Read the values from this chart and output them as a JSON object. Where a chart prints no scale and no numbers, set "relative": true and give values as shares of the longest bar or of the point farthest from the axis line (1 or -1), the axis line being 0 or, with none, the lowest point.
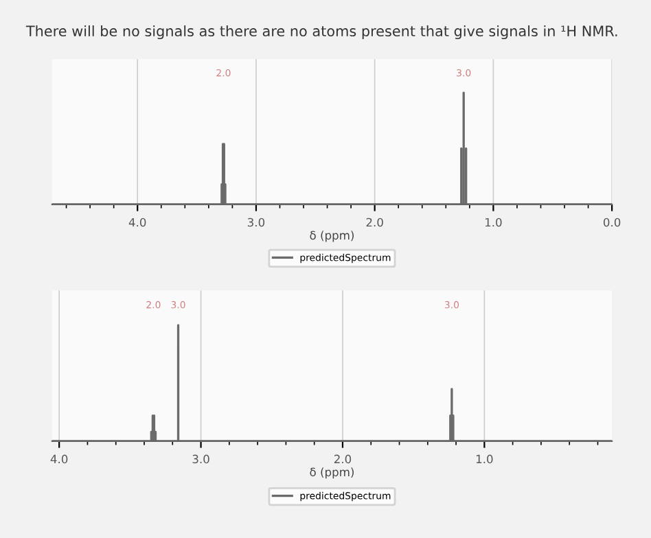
{
  "chart_data": [
    {
      "type": "line",
      "title": "There will be no signals as there are no atoms present that give signals in ¹H NMR.",
      "xlabel": "δ (ppm)",
      "relative": true,
      "xlim": [
        4.72,
        0.0
      ],
      "xticks": [
        {
          "value": 4.0,
          "label": "4.0"
        },
        {
          "value": 3.0,
          "label": "3.0"
        },
        {
          "value": 2.0,
          "label": "2.0"
        },
        {
          "value": 1.0,
          "label": "1.0"
        },
        {
          "value": 0.0,
          "label": "0.0"
        }
      ],
      "grid": "x",
      "legend": "bottom",
      "tick_labels": "x",
      "series": [
        {
          "name": "predictedSpectrum",
          "color": "#6b6b6b",
          "x": [
            4.72,
            3.29,
            3.29,
            3.29,
            3.28,
            3.28,
            3.28,
            3.27,
            3.27,
            3.27,
            3.26,
            3.26,
            3.26,
            1.27,
            1.27,
            1.27,
            1.25,
            1.25,
            1.25,
            1.23,
            1.23,
            1.23,
            0.0
          ],
          "values": [
            0,
            0,
            0.18,
            0,
            0,
            0.54,
            0,
            0,
            0.54,
            0,
            0,
            0.18,
            0,
            0,
            0.5,
            0,
            0,
            1,
            0,
            0,
            0.5,
            0,
            0
          ]
        }
      ],
      "annotations": [
        "2.0",
        "3.0"
      ]
    },
    {
      "type": "line",
      "xlabel": "δ (ppm)",
      "relative": true,
      "xlim": [
        4.05,
        0.1
      ],
      "xticks": [
        {
          "value": 4.0,
          "label": "4.0"
        },
        {
          "value": 3.0,
          "label": "3.0"
        },
        {
          "value": 2.0,
          "label": "2.0"
        },
        {
          "value": 1.0,
          "label": "1.0"
        }
      ],
      "grid": "x",
      "legend": "bottom",
      "tick_labels": "x",
      "series": [
        {
          "name": "predictedSpectrum",
          "color": "#6b6b6b",
          "x": [
            4.05,
            3.35,
            3.35,
            3.35,
            3.34,
            3.34,
            3.34,
            3.33,
            3.33,
            3.33,
            3.32,
            3.32,
            3.32,
            3.16,
            3.16,
            3.16,
            1.24,
            1.24,
            1.24,
            1.23,
            1.23,
            1.23,
            1.22,
            1.22,
            1.22,
            0.1
          ],
          "values": [
            0,
            0,
            0.08,
            0,
            0,
            0.22,
            0,
            0,
            0.22,
            0,
            0,
            0.08,
            0,
            0,
            1,
            0,
            0,
            0.22,
            0,
            0,
            0.45,
            0,
            0,
            0.22,
            0,
            0
          ]
        }
      ],
      "annotations": [
        "2.0",
        "3.0",
        "3.0"
      ]
    }
  ]
}
